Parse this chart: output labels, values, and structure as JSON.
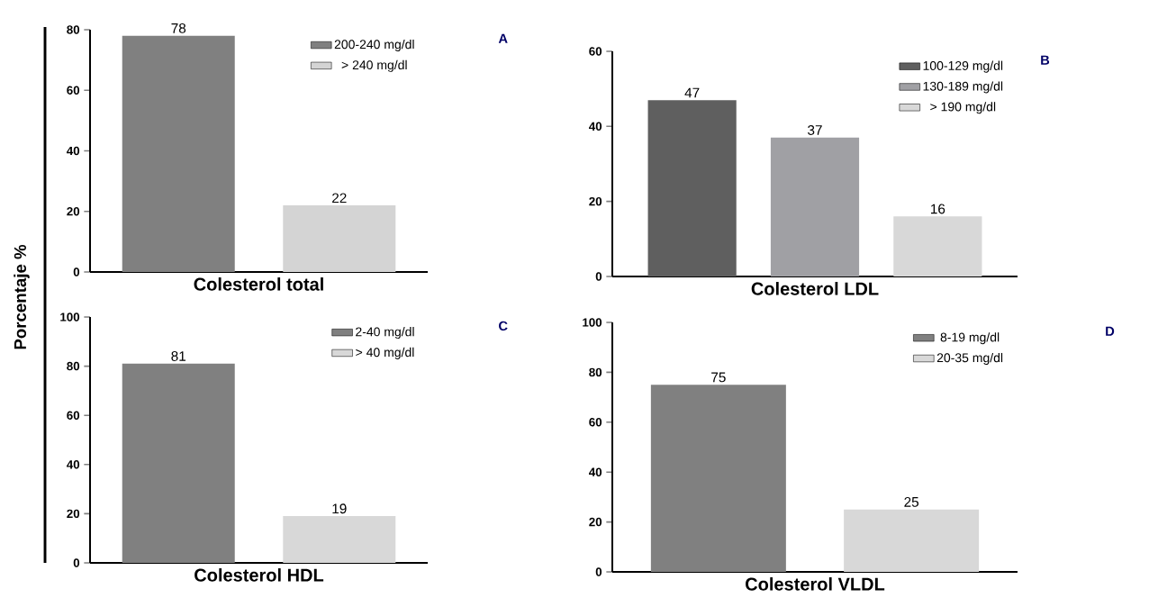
{
  "chart_data": [
    {
      "type": "bar",
      "ylabel": "Porcentaje %",
      "xlabel": "Colesterol total",
      "annotations": [
        "A"
      ],
      "categories": [
        null,
        null
      ],
      "ylim": [
        0,
        80
      ],
      "yticks": [
        0,
        20,
        40,
        60,
        80
      ],
      "data_labels": true,
      "legend": "top right",
      "series": [
        {
          "name": "200-240 mg/dl",
          "color": "#808080",
          "values": [
            78,
            null
          ]
        },
        {
          "name": "> 240 mg/dl",
          "color": "#d4d4d4",
          "values": [
            null,
            22
          ]
        }
      ]
    },
    {
      "type": "bar",
      "xlabel": "Colesterol LDL",
      "annotations": [
        "B"
      ],
      "categories": [
        null,
        null,
        null
      ],
      "ylim": [
        0,
        60
      ],
      "yticks": [
        0,
        20,
        40,
        60
      ],
      "data_labels": true,
      "legend": "top right",
      "series": [
        {
          "name": "100-129 mg/dl",
          "color": "#5f5f5f",
          "values": [
            47,
            null,
            null
          ]
        },
        {
          "name": "130-189 mg/dl",
          "color": "#a0a0a4",
          "values": [
            null,
            37,
            null
          ]
        },
        {
          "name": "> 190 mg/dl",
          "color": "#d8d8d8",
          "values": [
            null,
            null,
            16
          ]
        }
      ]
    },
    {
      "type": "bar",
      "xlabel": "Colesterol HDL",
      "annotations": [
        "C"
      ],
      "categories": [
        null,
        null
      ],
      "ylim": [
        0,
        100
      ],
      "yticks": [
        0,
        20,
        40,
        60,
        80,
        100
      ],
      "data_labels": true,
      "legend": "top right",
      "series": [
        {
          "name": "2-40 mg/dl",
          "color": "#808080",
          "values": [
            81,
            null
          ]
        },
        {
          "name": "> 40 mg/dl",
          "color": "#d8d8d8",
          "values": [
            null,
            19
          ]
        }
      ]
    },
    {
      "type": "bar",
      "xlabel": "Colesterol VLDL",
      "annotations": [
        "D"
      ],
      "categories": [
        null,
        null
      ],
      "ylim": [
        0,
        100
      ],
      "yticks": [
        0,
        20,
        40,
        60,
        80,
        100
      ],
      "data_labels": true,
      "legend": "top right",
      "series": [
        {
          "name": "8-19 mg/dl",
          "color": "#808080",
          "values": [
            75,
            null
          ]
        },
        {
          "name": "20-35 mg/dl",
          "color": "#d8d8d8",
          "values": [
            null,
            25
          ]
        }
      ]
    }
  ]
}
